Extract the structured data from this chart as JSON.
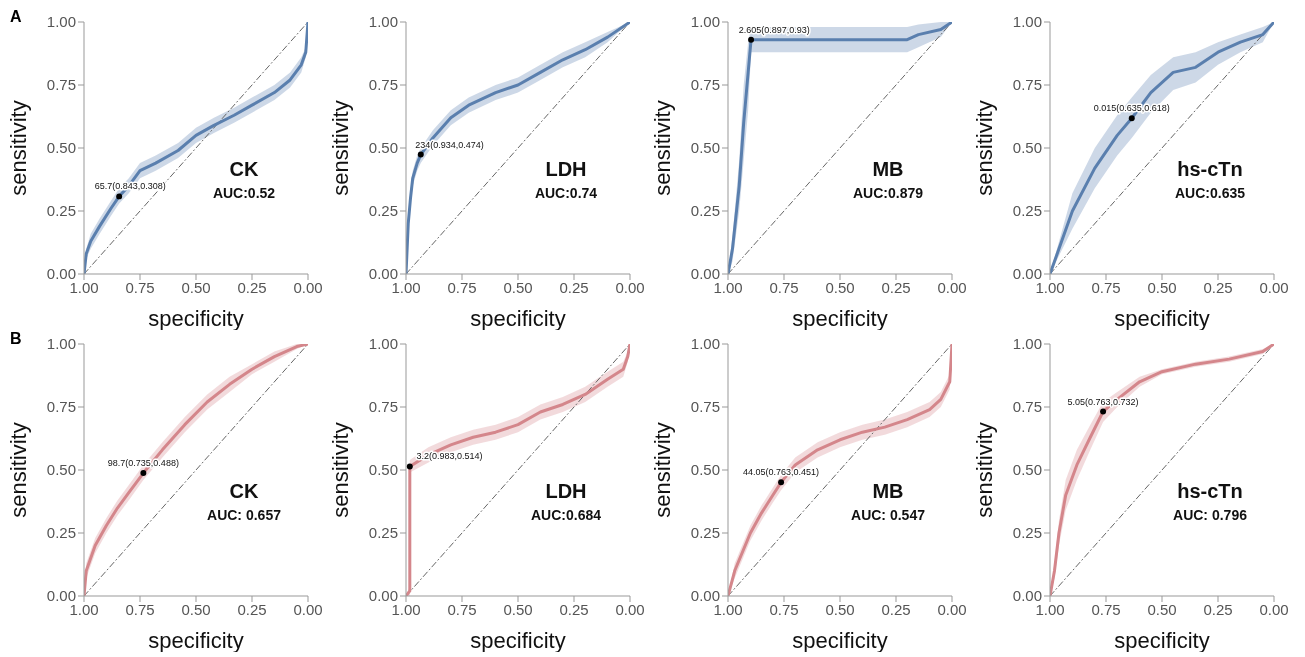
{
  "chart_data": [
    {
      "type": "line",
      "title": "CK",
      "subtitle": "AUC:0.52",
      "xlabel": "specificity",
      "ylabel": "sensitivity",
      "xlim": [
        1,
        0
      ],
      "ylim": [
        0,
        1
      ],
      "xticks": [
        {
          "value": 1,
          "label": "1.00"
        },
        {
          "value": 0.75,
          "label": "0.75"
        },
        {
          "value": 0.5,
          "label": "0.50"
        },
        {
          "value": 0.25,
          "label": "0.25"
        },
        {
          "value": 0,
          "label": "0.00"
        }
      ],
      "yticks": [
        {
          "value": 0,
          "label": "0.00"
        },
        {
          "value": 0.25,
          "label": "0.25"
        },
        {
          "value": 0.5,
          "label": "0.50"
        },
        {
          "value": 0.75,
          "label": "0.75"
        },
        {
          "value": 1,
          "label": "1.00"
        }
      ],
      "annotations": [
        "A",
        {
          "text": "65.7(0.843,0.308)",
          "x": 0.843,
          "y": 0.308
        }
      ],
      "series": [
        {
          "type": "line",
          "line_style": "dashed",
          "color": "#666666",
          "x": [
            1,
            0
          ],
          "values": [
            0,
            1
          ]
        },
        {
          "color": "#5a7fae",
          "x": [
            1,
            0.99,
            0.97,
            0.93,
            0.88,
            0.843,
            0.8,
            0.75,
            0.68,
            0.58,
            0.5,
            0.42,
            0.33,
            0.25,
            0.15,
            0.08,
            0.03,
            0.01,
            0
          ],
          "values": [
            0,
            0.08,
            0.13,
            0.19,
            0.26,
            0.308,
            0.35,
            0.41,
            0.44,
            0.49,
            0.55,
            0.59,
            0.63,
            0.67,
            0.72,
            0.77,
            0.83,
            0.88,
            1
          ],
          "lower": [
            0,
            0.06,
            0.1,
            0.16,
            0.23,
            0.28,
            0.32,
            0.38,
            0.41,
            0.46,
            0.52,
            0.56,
            0.6,
            0.64,
            0.69,
            0.74,
            0.8,
            0.86,
            1
          ],
          "upper": [
            0,
            0.1,
            0.16,
            0.22,
            0.29,
            0.34,
            0.38,
            0.44,
            0.47,
            0.52,
            0.58,
            0.62,
            0.66,
            0.7,
            0.75,
            0.8,
            0.86,
            0.9,
            1
          ]
        },
        {
          "type": "scatter",
          "color": "#000000",
          "x": [
            0.843
          ],
          "values": [
            0.308
          ]
        }
      ]
    },
    {
      "type": "line",
      "title": "LDH",
      "subtitle": "AUC:0.74",
      "xlabel": "specificity",
      "ylabel": "sensitivity",
      "xlim": [
        1,
        0
      ],
      "ylim": [
        0,
        1
      ],
      "xticks": [
        {
          "value": 1,
          "label": "1.00"
        },
        {
          "value": 0.75,
          "label": "0.75"
        },
        {
          "value": 0.5,
          "label": "0.50"
        },
        {
          "value": 0.25,
          "label": "0.25"
        },
        {
          "value": 0,
          "label": "0.00"
        }
      ],
      "yticks": [
        {
          "value": 0,
          "label": "0.00"
        },
        {
          "value": 0.25,
          "label": "0.25"
        },
        {
          "value": 0.5,
          "label": "0.50"
        },
        {
          "value": 0.75,
          "label": "0.75"
        },
        {
          "value": 1,
          "label": "1.00"
        }
      ],
      "annotations": [
        {
          "text": "234(0.934,0.474)",
          "x": 0.934,
          "y": 0.474
        }
      ],
      "series": [
        {
          "type": "line",
          "line_style": "dashed",
          "color": "#666666",
          "x": [
            1,
            0
          ],
          "values": [
            0,
            1
          ]
        },
        {
          "color": "#5a7fae",
          "x": [
            1,
            0.99,
            0.98,
            0.97,
            0.95,
            0.934,
            0.88,
            0.8,
            0.72,
            0.6,
            0.5,
            0.4,
            0.3,
            0.2,
            0.1,
            0
          ],
          "values": [
            0,
            0.2,
            0.3,
            0.38,
            0.44,
            0.474,
            0.54,
            0.62,
            0.67,
            0.72,
            0.75,
            0.8,
            0.85,
            0.89,
            0.94,
            1
          ],
          "lower": [
            0,
            0.18,
            0.27,
            0.35,
            0.41,
            0.44,
            0.51,
            0.59,
            0.64,
            0.69,
            0.72,
            0.77,
            0.82,
            0.86,
            0.92,
            1
          ],
          "upper": [
            0,
            0.22,
            0.33,
            0.41,
            0.47,
            0.5,
            0.57,
            0.65,
            0.7,
            0.75,
            0.78,
            0.83,
            0.88,
            0.92,
            0.96,
            1
          ]
        },
        {
          "type": "scatter",
          "color": "#000000",
          "x": [
            0.934
          ],
          "values": [
            0.474
          ]
        }
      ]
    },
    {
      "type": "line",
      "title": "MB",
      "subtitle": "AUC:0.879",
      "xlabel": "specificity",
      "ylabel": "sensitivity",
      "xlim": [
        1,
        0
      ],
      "ylim": [
        0,
        1
      ],
      "xticks": [
        {
          "value": 1,
          "label": "1.00"
        },
        {
          "value": 0.75,
          "label": "0.75"
        },
        {
          "value": 0.5,
          "label": "0.50"
        },
        {
          "value": 0.25,
          "label": "0.25"
        },
        {
          "value": 0,
          "label": "0.00"
        }
      ],
      "yticks": [
        {
          "value": 0,
          "label": "0.00"
        },
        {
          "value": 0.25,
          "label": "0.25"
        },
        {
          "value": 0.5,
          "label": "0.50"
        },
        {
          "value": 0.75,
          "label": "0.75"
        },
        {
          "value": 1,
          "label": "1.00"
        }
      ],
      "annotations": [
        {
          "text": "2.605(0.897,0.93)",
          "x": 0.897,
          "y": 0.93
        }
      ],
      "series": [
        {
          "type": "line",
          "line_style": "dashed",
          "color": "#666666",
          "x": [
            1,
            0
          ],
          "values": [
            0,
            1
          ]
        },
        {
          "color": "#5a7fae",
          "x": [
            1,
            0.98,
            0.95,
            0.93,
            0.91,
            0.897,
            0.5,
            0.2,
            0.15,
            0.05,
            0
          ],
          "values": [
            0,
            0.1,
            0.35,
            0.6,
            0.8,
            0.93,
            0.93,
            0.93,
            0.95,
            0.97,
            1
          ],
          "lower": [
            0,
            0.05,
            0.25,
            0.45,
            0.65,
            0.88,
            0.88,
            0.88,
            0.9,
            0.94,
            1
          ],
          "upper": [
            0,
            0.15,
            0.45,
            0.75,
            0.92,
            0.98,
            0.98,
            0.98,
            0.99,
            1,
            1
          ]
        },
        {
          "type": "scatter",
          "color": "#000000",
          "x": [
            0.897
          ],
          "values": [
            0.93
          ]
        }
      ]
    },
    {
      "type": "line",
      "title": "hs-cTn",
      "subtitle": "AUC:0.635",
      "xlabel": "specificity",
      "ylabel": "sensitivity",
      "xlim": [
        1,
        0
      ],
      "ylim": [
        0,
        1
      ],
      "xticks": [
        {
          "value": 1,
          "label": "1.00"
        },
        {
          "value": 0.75,
          "label": "0.75"
        },
        {
          "value": 0.5,
          "label": "0.50"
        },
        {
          "value": 0.25,
          "label": "0.25"
        },
        {
          "value": 0,
          "label": "0.00"
        }
      ],
      "yticks": [
        {
          "value": 0,
          "label": "0.00"
        },
        {
          "value": 0.25,
          "label": "0.25"
        },
        {
          "value": 0.5,
          "label": "0.50"
        },
        {
          "value": 0.75,
          "label": "0.75"
        },
        {
          "value": 1,
          "label": "1.00"
        }
      ],
      "annotations": [
        {
          "text": "0.015(0.635,0.618)",
          "x": 0.635,
          "y": 0.618
        }
      ],
      "series": [
        {
          "type": "line",
          "line_style": "dashed",
          "color": "#666666",
          "x": [
            1,
            0
          ],
          "values": [
            0,
            1
          ]
        },
        {
          "color": "#5a7fae",
          "x": [
            1,
            0.9,
            0.8,
            0.7,
            0.635,
            0.55,
            0.45,
            0.35,
            0.25,
            0.15,
            0.05,
            0
          ],
          "values": [
            0,
            0.25,
            0.42,
            0.55,
            0.618,
            0.72,
            0.8,
            0.82,
            0.88,
            0.92,
            0.95,
            1
          ],
          "lower": [
            0,
            0.18,
            0.34,
            0.47,
            0.54,
            0.64,
            0.73,
            0.76,
            0.83,
            0.88,
            0.92,
            1
          ],
          "upper": [
            0,
            0.32,
            0.5,
            0.63,
            0.7,
            0.79,
            0.86,
            0.88,
            0.92,
            0.95,
            0.98,
            1
          ]
        },
        {
          "type": "scatter",
          "color": "#000000",
          "x": [
            0.635
          ],
          "values": [
            0.618
          ]
        }
      ]
    },
    {
      "type": "line",
      "title": "CK",
      "subtitle": "AUC: 0.657",
      "xlabel": "specificity",
      "ylabel": "sensitivity",
      "xlim": [
        1,
        0
      ],
      "ylim": [
        0,
        1
      ],
      "xticks": [
        {
          "value": 1,
          "label": "1.00"
        },
        {
          "value": 0.75,
          "label": "0.75"
        },
        {
          "value": 0.5,
          "label": "0.50"
        },
        {
          "value": 0.25,
          "label": "0.25"
        },
        {
          "value": 0,
          "label": "0.00"
        }
      ],
      "yticks": [
        {
          "value": 0,
          "label": "0.00"
        },
        {
          "value": 0.25,
          "label": "0.25"
        },
        {
          "value": 0.5,
          "label": "0.50"
        },
        {
          "value": 0.75,
          "label": "0.75"
        },
        {
          "value": 1,
          "label": "1.00"
        }
      ],
      "annotations": [
        "B",
        {
          "text": "98.7(0.735,0.488)",
          "x": 0.735,
          "y": 0.488
        }
      ],
      "series": [
        {
          "type": "line",
          "line_style": "dashed",
          "color": "#666666",
          "x": [
            1,
            0
          ],
          "values": [
            0,
            1
          ]
        },
        {
          "color": "#d4868b",
          "x": [
            1,
            0.99,
            0.95,
            0.9,
            0.85,
            0.8,
            0.735,
            0.65,
            0.55,
            0.45,
            0.35,
            0.25,
            0.15,
            0.05,
            0
          ],
          "values": [
            0,
            0.1,
            0.2,
            0.28,
            0.35,
            0.41,
            0.488,
            0.58,
            0.68,
            0.77,
            0.84,
            0.9,
            0.95,
            0.99,
            1
          ],
          "lower": [
            0,
            0.07,
            0.17,
            0.25,
            0.32,
            0.38,
            0.46,
            0.55,
            0.65,
            0.74,
            0.81,
            0.88,
            0.93,
            0.98,
            1
          ],
          "upper": [
            0,
            0.13,
            0.23,
            0.31,
            0.38,
            0.44,
            0.52,
            0.61,
            0.71,
            0.8,
            0.87,
            0.92,
            0.97,
            1,
            1
          ]
        },
        {
          "type": "scatter",
          "color": "#000000",
          "x": [
            0.735
          ],
          "values": [
            0.488
          ]
        }
      ]
    },
    {
      "type": "line",
      "title": "LDH",
      "subtitle": "AUC:0.684",
      "xlabel": "specificity",
      "ylabel": "sensitivity",
      "xlim": [
        1,
        0
      ],
      "ylim": [
        0,
        1
      ],
      "xticks": [
        {
          "value": 1,
          "label": "1.00"
        },
        {
          "value": 0.75,
          "label": "0.75"
        },
        {
          "value": 0.5,
          "label": "0.50"
        },
        {
          "value": 0.25,
          "label": "0.25"
        },
        {
          "value": 0,
          "label": "0.00"
        }
      ],
      "yticks": [
        {
          "value": 0,
          "label": "0.00"
        },
        {
          "value": 0.25,
          "label": "0.25"
        },
        {
          "value": 0.5,
          "label": "0.50"
        },
        {
          "value": 0.75,
          "label": "0.75"
        },
        {
          "value": 1,
          "label": "1.00"
        }
      ],
      "annotations": [
        {
          "text": "3.2(0.983,0.514)",
          "x": 0.983,
          "y": 0.514
        }
      ],
      "series": [
        {
          "type": "line",
          "line_style": "dashed",
          "color": "#666666",
          "x": [
            1,
            0
          ],
          "values": [
            0,
            1
          ]
        },
        {
          "color": "#d4868b",
          "x": [
            1,
            0.983,
            0.983,
            0.9,
            0.8,
            0.7,
            0.6,
            0.5,
            0.4,
            0.3,
            0.2,
            0.1,
            0.03,
            0.01,
            0
          ],
          "values": [
            0,
            0.02,
            0.514,
            0.56,
            0.6,
            0.63,
            0.65,
            0.68,
            0.73,
            0.76,
            0.8,
            0.86,
            0.9,
            0.95,
            1
          ],
          "lower": [
            0,
            0,
            0.49,
            0.53,
            0.57,
            0.6,
            0.62,
            0.65,
            0.7,
            0.73,
            0.77,
            0.83,
            0.87,
            0.93,
            1
          ],
          "upper": [
            0,
            0.04,
            0.54,
            0.59,
            0.63,
            0.66,
            0.68,
            0.71,
            0.76,
            0.79,
            0.83,
            0.89,
            0.93,
            0.97,
            1
          ]
        },
        {
          "type": "scatter",
          "color": "#000000",
          "x": [
            0.983
          ],
          "values": [
            0.514
          ]
        }
      ]
    },
    {
      "type": "line",
      "title": "MB",
      "subtitle": "AUC: 0.547",
      "xlabel": "specificity",
      "ylabel": "sensitivity",
      "xlim": [
        1,
        0
      ],
      "ylim": [
        0,
        1
      ],
      "xticks": [
        {
          "value": 1,
          "label": "1.00"
        },
        {
          "value": 0.75,
          "label": "0.75"
        },
        {
          "value": 0.5,
          "label": "0.50"
        },
        {
          "value": 0.25,
          "label": "0.25"
        },
        {
          "value": 0,
          "label": "0.00"
        }
      ],
      "yticks": [
        {
          "value": 0,
          "label": "0.00"
        },
        {
          "value": 0.25,
          "label": "0.25"
        },
        {
          "value": 0.5,
          "label": "0.50"
        },
        {
          "value": 0.75,
          "label": "0.75"
        },
        {
          "value": 1,
          "label": "1.00"
        }
      ],
      "annotations": [
        {
          "text": "44.05(0.763,0.451)",
          "x": 0.763,
          "y": 0.451
        }
      ],
      "series": [
        {
          "type": "line",
          "line_style": "dashed",
          "color": "#666666",
          "x": [
            1,
            0
          ],
          "values": [
            0,
            1
          ]
        },
        {
          "color": "#d4868b",
          "x": [
            1,
            0.97,
            0.9,
            0.85,
            0.8,
            0.763,
            0.7,
            0.6,
            0.5,
            0.4,
            0.3,
            0.2,
            0.1,
            0.05,
            0.01,
            0
          ],
          "values": [
            0,
            0.1,
            0.25,
            0.33,
            0.4,
            0.451,
            0.52,
            0.58,
            0.62,
            0.65,
            0.67,
            0.7,
            0.74,
            0.78,
            0.85,
            1
          ],
          "lower": [
            0,
            0.07,
            0.22,
            0.3,
            0.37,
            0.42,
            0.49,
            0.55,
            0.59,
            0.62,
            0.64,
            0.67,
            0.71,
            0.75,
            0.82,
            1
          ],
          "upper": [
            0,
            0.13,
            0.28,
            0.36,
            0.43,
            0.48,
            0.55,
            0.61,
            0.65,
            0.68,
            0.7,
            0.73,
            0.77,
            0.81,
            0.88,
            1
          ]
        },
        {
          "type": "scatter",
          "color": "#000000",
          "x": [
            0.763
          ],
          "values": [
            0.451
          ]
        }
      ]
    },
    {
      "type": "line",
      "title": "hs-cTn",
      "subtitle": "AUC: 0.796",
      "xlabel": "specificity",
      "ylabel": "sensitivity",
      "xlim": [
        1,
        0
      ],
      "ylim": [
        0,
        1
      ],
      "xticks": [
        {
          "value": 1,
          "label": "1.00"
        },
        {
          "value": 0.75,
          "label": "0.75"
        },
        {
          "value": 0.5,
          "label": "0.50"
        },
        {
          "value": 0.25,
          "label": "0.25"
        },
        {
          "value": 0,
          "label": "0.00"
        }
      ],
      "yticks": [
        {
          "value": 0,
          "label": "0.00"
        },
        {
          "value": 0.25,
          "label": "0.25"
        },
        {
          "value": 0.5,
          "label": "0.50"
        },
        {
          "value": 0.75,
          "label": "0.75"
        },
        {
          "value": 1,
          "label": "1.00"
        }
      ],
      "annotations": [
        {
          "text": "5.05(0.763,0.732)",
          "x": 0.763,
          "y": 0.732
        }
      ],
      "series": [
        {
          "type": "line",
          "line_style": "dashed",
          "color": "#666666",
          "x": [
            1,
            0
          ],
          "values": [
            0,
            1
          ]
        },
        {
          "color": "#d4868b",
          "x": [
            1,
            0.98,
            0.96,
            0.93,
            0.88,
            0.82,
            0.763,
            0.7,
            0.6,
            0.5,
            0.35,
            0.2,
            0.05,
            0
          ],
          "values": [
            0,
            0.1,
            0.25,
            0.4,
            0.52,
            0.63,
            0.732,
            0.78,
            0.85,
            0.89,
            0.92,
            0.94,
            0.97,
            1
          ],
          "lower": [
            0,
            0.07,
            0.2,
            0.34,
            0.46,
            0.58,
            0.69,
            0.75,
            0.83,
            0.88,
            0.91,
            0.93,
            0.96,
            1
          ],
          "upper": [
            0,
            0.13,
            0.3,
            0.46,
            0.58,
            0.68,
            0.77,
            0.81,
            0.87,
            0.9,
            0.93,
            0.95,
            0.98,
            1
          ]
        },
        {
          "type": "scatter",
          "color": "#000000",
          "x": [
            0.763
          ],
          "values": [
            0.732
          ]
        }
      ]
    }
  ]
}
